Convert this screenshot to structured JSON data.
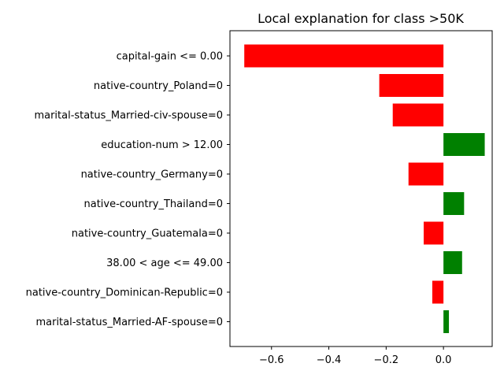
{
  "chart_data": {
    "type": "bar",
    "orientation": "horizontal",
    "title": "Local explanation for class >50K",
    "xlabel": "",
    "ylabel": "",
    "xlim": [
      -0.745,
      0.17
    ],
    "xticks": [
      -0.6,
      -0.4,
      -0.2,
      0.0
    ],
    "xtick_labels": [
      "−0.6",
      "−0.4",
      "−0.2",
      "0.0"
    ],
    "grid": false,
    "categories": [
      "capital-gain <= 0.00",
      "native-country_Poland=0",
      "marital-status_Married-civ-spouse=0",
      "education-num > 12.00",
      "native-country_Germany=0",
      "native-country_Thailand=0",
      "native-country_Guatemala=0",
      "38.00 < age <= 49.00",
      "native-country_Dominican-Republic=0",
      "marital-status_Married-AF-spouse=0"
    ],
    "values": [
      -0.695,
      -0.224,
      -0.177,
      0.144,
      -0.122,
      0.072,
      -0.069,
      0.065,
      -0.039,
      0.019
    ],
    "colors": {
      "positive": "#008000",
      "negative": "#ff0000"
    }
  }
}
